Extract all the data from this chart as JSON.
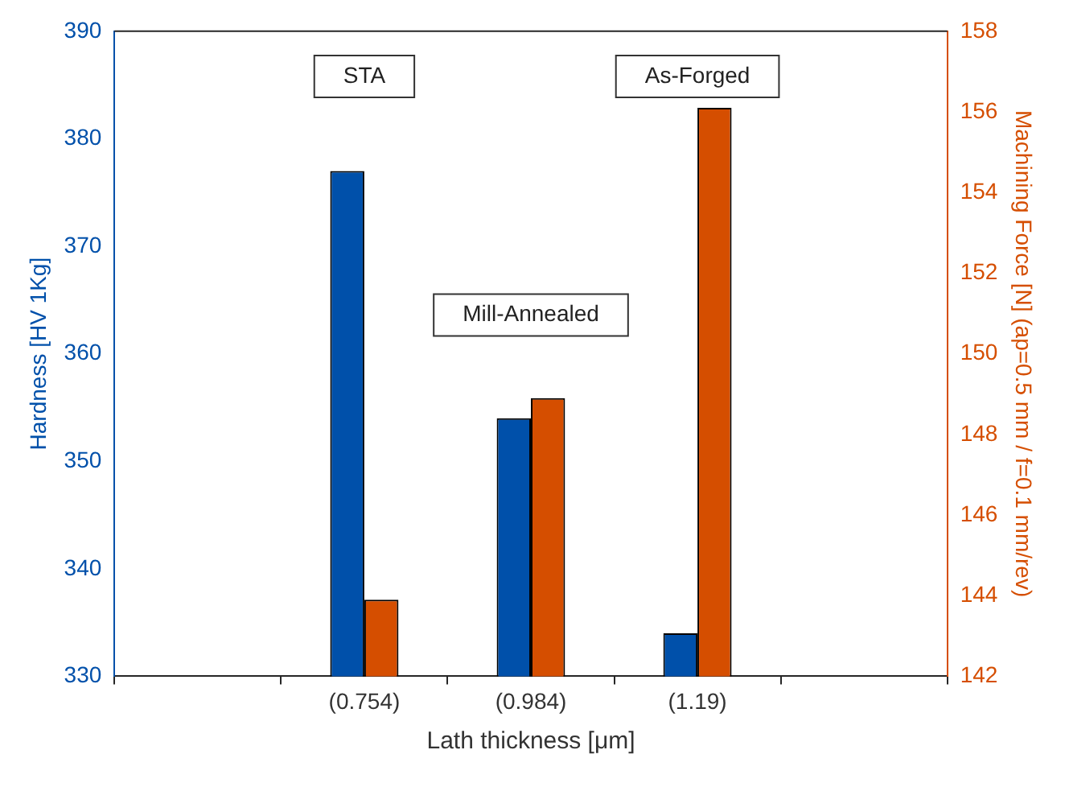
{
  "chart_data": {
    "type": "bar",
    "xlabel": "Lath thickness [μm]",
    "ylabel": "Hardness [HV 1Kg]",
    "y2label": "Machining Force [N] (ap=0.5 mm / f=0.1 mm/rev)",
    "categories": [
      "(0.754)",
      "(0.984)",
      "(1.19)"
    ],
    "series": [
      {
        "color": "#0050aa",
        "values": [
          377,
          354,
          334
        ]
      },
      {
        "color": "#d54e00",
        "values": [
          143.9,
          148.9,
          156.1
        ],
        "axis": "y2"
      }
    ],
    "ylim": [
      330,
      390
    ],
    "yticks": [
      330,
      340,
      350,
      360,
      370,
      380,
      390
    ],
    "y2lim": [
      142,
      158
    ],
    "y2ticks": [
      142,
      144,
      146,
      148,
      150,
      152,
      154,
      156,
      158
    ],
    "annotations": [
      "STA",
      "Mill-Annealed",
      "As-Forged"
    ],
    "grid": false,
    "legend": false
  }
}
